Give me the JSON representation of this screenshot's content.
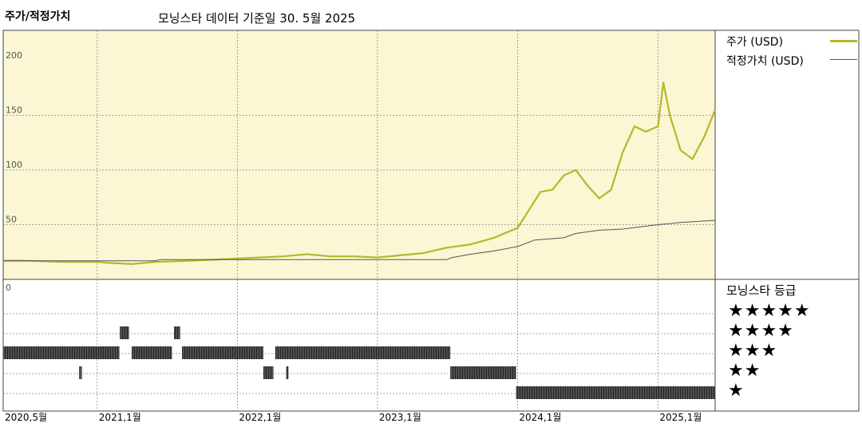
{
  "header": {
    "title": "주가/적정가치",
    "subtitle": "모닝스타 데이터 기준일 30. 5월 2025"
  },
  "legend": {
    "price_label": "주가 (USD)",
    "fair_value_label": "적정가치 (USD)"
  },
  "rating_panel": {
    "title": "모닝스타 등급",
    "rows": [
      "★★★★★",
      "★★★★",
      "★★★",
      "★★",
      "★"
    ]
  },
  "colors": {
    "price": "#b5b82a",
    "fair_value": "#555555",
    "plot_bg": "#fbf6d3",
    "grid": "#888888"
  },
  "chart_data": {
    "type": "line",
    "title": "주가/적정가치",
    "x_ticks": [
      {
        "date": "2020-05",
        "label": "2020,5월"
      },
      {
        "date": "2021-01",
        "label": "2021,1월"
      },
      {
        "date": "2022-01",
        "label": "2022,1월"
      },
      {
        "date": "2023-01",
        "label": "2023,1월"
      },
      {
        "date": "2024-01",
        "label": "2024,1월"
      },
      {
        "date": "2025-01",
        "label": "2025,1월"
      }
    ],
    "x_range": [
      "2020-05-01",
      "2025-05-30"
    ],
    "y_ticks": [
      0,
      50,
      100,
      150,
      200
    ],
    "ylim": [
      0,
      200
    ],
    "series": [
      {
        "name": "주가 (USD)",
        "points": [
          [
            "2020-05-01",
            17
          ],
          [
            "2020-07-01",
            17
          ],
          [
            "2020-10-01",
            16
          ],
          [
            "2021-01-01",
            16
          ],
          [
            "2021-02-01",
            15
          ],
          [
            "2021-04-01",
            14
          ],
          [
            "2021-06-01",
            16
          ],
          [
            "2021-09-01",
            17
          ],
          [
            "2022-01-01",
            19
          ],
          [
            "2022-03-01",
            20
          ],
          [
            "2022-05-01",
            21
          ],
          [
            "2022-07-01",
            23
          ],
          [
            "2022-09-01",
            21
          ],
          [
            "2022-11-01",
            21
          ],
          [
            "2023-01-01",
            20
          ],
          [
            "2023-03-01",
            22
          ],
          [
            "2023-05-01",
            24
          ],
          [
            "2023-07-01",
            29
          ],
          [
            "2023-09-01",
            32
          ],
          [
            "2023-11-01",
            38
          ],
          [
            "2024-01-01",
            47
          ],
          [
            "2024-02-01",
            64
          ],
          [
            "2024-03-01",
            80
          ],
          [
            "2024-04-01",
            82
          ],
          [
            "2024-05-01",
            95
          ],
          [
            "2024-06-01",
            100
          ],
          [
            "2024-07-01",
            86
          ],
          [
            "2024-08-01",
            74
          ],
          [
            "2024-09-01",
            82
          ],
          [
            "2024-10-01",
            116
          ],
          [
            "2024-11-01",
            140
          ],
          [
            "2024-12-01",
            135
          ],
          [
            "2025-01-01",
            140
          ],
          [
            "2025-01-15",
            180
          ],
          [
            "2025-02-01",
            150
          ],
          [
            "2025-03-01",
            118
          ],
          [
            "2025-04-01",
            110
          ],
          [
            "2025-05-01",
            130
          ],
          [
            "2025-05-30",
            155
          ]
        ]
      },
      {
        "name": "적정가치 (USD)",
        "points": [
          [
            "2020-05-01",
            17
          ],
          [
            "2021-06-01",
            17
          ],
          [
            "2021-06-15",
            18
          ],
          [
            "2023-07-01",
            18
          ],
          [
            "2023-07-15",
            20
          ],
          [
            "2023-09-01",
            23
          ],
          [
            "2023-11-01",
            26
          ],
          [
            "2024-01-01",
            30
          ],
          [
            "2024-02-15",
            36
          ],
          [
            "2024-05-01",
            38
          ],
          [
            "2024-06-01",
            42
          ],
          [
            "2024-08-01",
            45
          ],
          [
            "2024-10-01",
            46
          ],
          [
            "2025-01-01",
            50
          ],
          [
            "2025-03-01",
            52
          ],
          [
            "2025-05-30",
            54
          ]
        ]
      }
    ],
    "rating_bands": [
      {
        "stars": 4,
        "ranges": [
          [
            "2021-03-01",
            "2021-03-25"
          ],
          [
            "2021-07-20",
            "2021-08-05"
          ]
        ]
      },
      {
        "stars": 3,
        "ranges": [
          [
            "2020-05-01",
            "2021-02-28"
          ],
          [
            "2021-04-01",
            "2021-07-15"
          ],
          [
            "2021-08-10",
            "2022-03-10"
          ],
          [
            "2022-04-10",
            "2023-07-10"
          ]
        ]
      },
      {
        "stars": 2,
        "ranges": [
          [
            "2020-11-15",
            "2020-11-22"
          ],
          [
            "2022-03-10",
            "2022-04-05"
          ],
          [
            "2022-05-08",
            "2022-05-14"
          ],
          [
            "2023-07-10",
            "2023-12-28"
          ]
        ]
      },
      {
        "stars": 1,
        "ranges": [
          [
            "2023-12-28",
            "2025-05-30"
          ]
        ]
      }
    ]
  }
}
